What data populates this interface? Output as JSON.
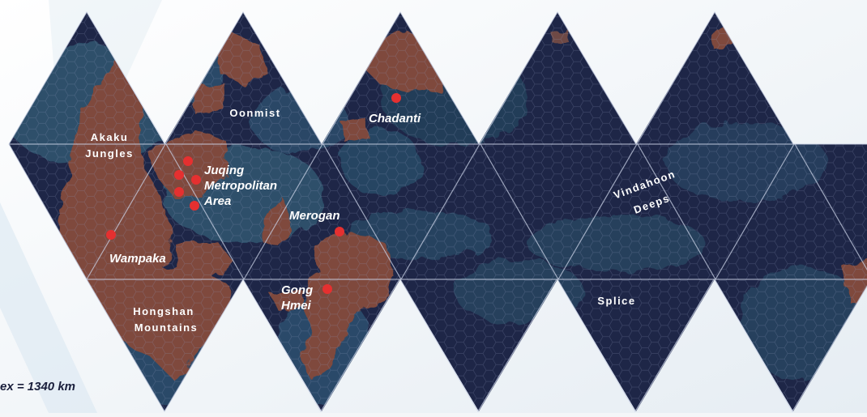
{
  "map": {
    "scale_label": "ex = 1340 km",
    "colors": {
      "ocean": "#1e2647",
      "shallows": "#2d4f6b",
      "land": "#7f4a3c",
      "city": "#e53030",
      "background": "#f4f6f8"
    }
  },
  "regions": {
    "akaku": [
      "Akaku",
      "Jungles"
    ],
    "oonmist": [
      "Oonmist"
    ],
    "hongshan": [
      "Hongshan",
      "Mountains"
    ],
    "splice": [
      "Splice"
    ],
    "vindahoon": [
      "Vindahoon",
      "Deeps"
    ]
  },
  "cities": {
    "chadanti": "Chadanti",
    "juqing": [
      "Juqing",
      "Metropolitan",
      "Area"
    ],
    "merogan": "Merogan",
    "wampaka": "Wampaka",
    "gong_hmei": [
      "Gong",
      "Hmei"
    ]
  }
}
